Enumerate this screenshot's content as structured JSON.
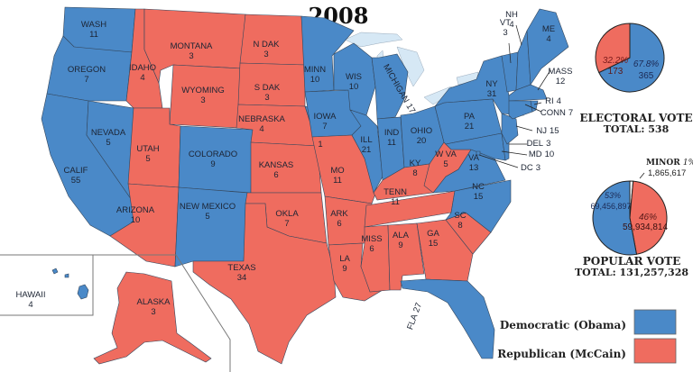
{
  "title": "2008",
  "colors": {
    "democratic": "#4a89c8",
    "republican": "#ef6c5f",
    "lakes": "#d6e8f5",
    "minor": "#ffffff"
  },
  "states": [
    {
      "id": "WA",
      "name": "WASH",
      "ev": "11",
      "party": "democratic"
    },
    {
      "id": "OR",
      "name": "OREGON",
      "ev": "7",
      "party": "democratic"
    },
    {
      "id": "CA",
      "name": "CALIF",
      "ev": "55",
      "party": "democratic"
    },
    {
      "id": "NV",
      "name": "NEVADA",
      "ev": "5",
      "party": "democratic"
    },
    {
      "id": "ID",
      "name": "IDAHO",
      "ev": "4",
      "party": "republican"
    },
    {
      "id": "MT",
      "name": "MONTANA",
      "ev": "3",
      "party": "republican"
    },
    {
      "id": "WY",
      "name": "WYOMING",
      "ev": "3",
      "party": "republican"
    },
    {
      "id": "UT",
      "name": "UTAH",
      "ev": "5",
      "party": "republican"
    },
    {
      "id": "CO",
      "name": "COLORADO",
      "ev": "9",
      "party": "democratic"
    },
    {
      "id": "AZ",
      "name": "ARIZONA",
      "ev": "10",
      "party": "republican"
    },
    {
      "id": "NM",
      "name": "NEW MEXICO",
      "ev": "5",
      "party": "democratic"
    },
    {
      "id": "ND",
      "name": "N DAK",
      "ev": "3",
      "party": "republican"
    },
    {
      "id": "SD",
      "name": "S DAK",
      "ev": "3",
      "party": "republican"
    },
    {
      "id": "NE",
      "name": "NEBRASKA",
      "ev": "4",
      "party": "republican"
    },
    {
      "id": "NE2",
      "name": "",
      "ev": "1",
      "party": "democratic"
    },
    {
      "id": "KS",
      "name": "KANSAS",
      "ev": "6",
      "party": "republican"
    },
    {
      "id": "OK",
      "name": "OKLA",
      "ev": "7",
      "party": "republican"
    },
    {
      "id": "TX",
      "name": "TEXAS",
      "ev": "34",
      "party": "republican"
    },
    {
      "id": "MN",
      "name": "MINN",
      "ev": "10",
      "party": "democratic"
    },
    {
      "id": "IA",
      "name": "IOWA",
      "ev": "7",
      "party": "democratic"
    },
    {
      "id": "MO",
      "name": "MO",
      "ev": "11",
      "party": "republican"
    },
    {
      "id": "AR",
      "name": "ARK",
      "ev": "6",
      "party": "republican"
    },
    {
      "id": "LA",
      "name": "LA",
      "ev": "9",
      "party": "republican"
    },
    {
      "id": "WI",
      "name": "WIS",
      "ev": "10",
      "party": "democratic"
    },
    {
      "id": "IL",
      "name": "ILL",
      "ev": "21",
      "party": "democratic"
    },
    {
      "id": "MI",
      "name": "MICHIGAN",
      "ev": "17",
      "party": "democratic"
    },
    {
      "id": "IN",
      "name": "IND",
      "ev": "11",
      "party": "democratic"
    },
    {
      "id": "OH",
      "name": "OHIO",
      "ev": "20",
      "party": "democratic"
    },
    {
      "id": "KY",
      "name": "KY",
      "ev": "8",
      "party": "republican"
    },
    {
      "id": "TN",
      "name": "TENN",
      "ev": "11",
      "party": "republican"
    },
    {
      "id": "MS",
      "name": "MISS",
      "ev": "6",
      "party": "republican"
    },
    {
      "id": "AL",
      "name": "ALA",
      "ev": "9",
      "party": "republican"
    },
    {
      "id": "GA",
      "name": "GA",
      "ev": "15",
      "party": "republican"
    },
    {
      "id": "FL",
      "name": "FLA",
      "ev": "27",
      "party": "democratic"
    },
    {
      "id": "SC",
      "name": "SC",
      "ev": "8",
      "party": "republican"
    },
    {
      "id": "NC",
      "name": "NC",
      "ev": "15",
      "party": "democratic"
    },
    {
      "id": "VA",
      "name": "VA",
      "ev": "13",
      "party": "democratic"
    },
    {
      "id": "WV",
      "name": "W VA",
      "ev": "5",
      "party": "republican"
    },
    {
      "id": "PA",
      "name": "PA",
      "ev": "21",
      "party": "democratic"
    },
    {
      "id": "NY",
      "name": "NY",
      "ev": "31",
      "party": "democratic"
    },
    {
      "id": "MD",
      "name": "MD",
      "ev": "10",
      "party": "democratic"
    },
    {
      "id": "DE",
      "name": "DEL",
      "ev": "3",
      "party": "democratic"
    },
    {
      "id": "DC",
      "name": "DC",
      "ev": "3",
      "party": "democratic"
    },
    {
      "id": "NJ",
      "name": "NJ",
      "ev": "15",
      "party": "democratic"
    },
    {
      "id": "VT",
      "name": "VT",
      "ev": "3",
      "party": "democratic"
    },
    {
      "id": "NH",
      "name": "NH",
      "ev": "4",
      "party": "democratic"
    },
    {
      "id": "ME",
      "name": "ME",
      "ev": "4",
      "party": "democratic"
    },
    {
      "id": "MA",
      "name": "MASS",
      "ev": "12",
      "party": "democratic"
    },
    {
      "id": "CT",
      "name": "CONN",
      "ev": "7",
      "party": "democratic"
    },
    {
      "id": "RI",
      "name": "RI",
      "ev": "4",
      "party": "democratic"
    },
    {
      "id": "HI",
      "name": "HAWAII",
      "ev": "4",
      "party": "democratic"
    },
    {
      "id": "AK",
      "name": "ALASKA",
      "ev": "3",
      "party": "republican"
    }
  ],
  "electoral_vote": {
    "caption": "ELECTORAL VOTE",
    "total_label": "TOTAL:  538",
    "democratic": {
      "pct": "67.8%",
      "votes": "365",
      "value": 365
    },
    "republican": {
      "pct": "32.2%",
      "votes": "173",
      "value": 173
    }
  },
  "popular_vote": {
    "caption": "POPULAR VOTE",
    "total_label": "TOTAL:  131,257,328",
    "democratic": {
      "pct": "53%",
      "votes": "69,456,897",
      "value": 69456897
    },
    "republican": {
      "pct": "46%",
      "votes": "59,934,814",
      "value": 59934814
    },
    "minor": {
      "label": "MINOR",
      "pct": "1%",
      "votes": "1,865,617",
      "value": 1865617
    }
  },
  "legend": {
    "democratic": "Democratic (Obama)",
    "republican": "Republican (McCain)"
  }
}
